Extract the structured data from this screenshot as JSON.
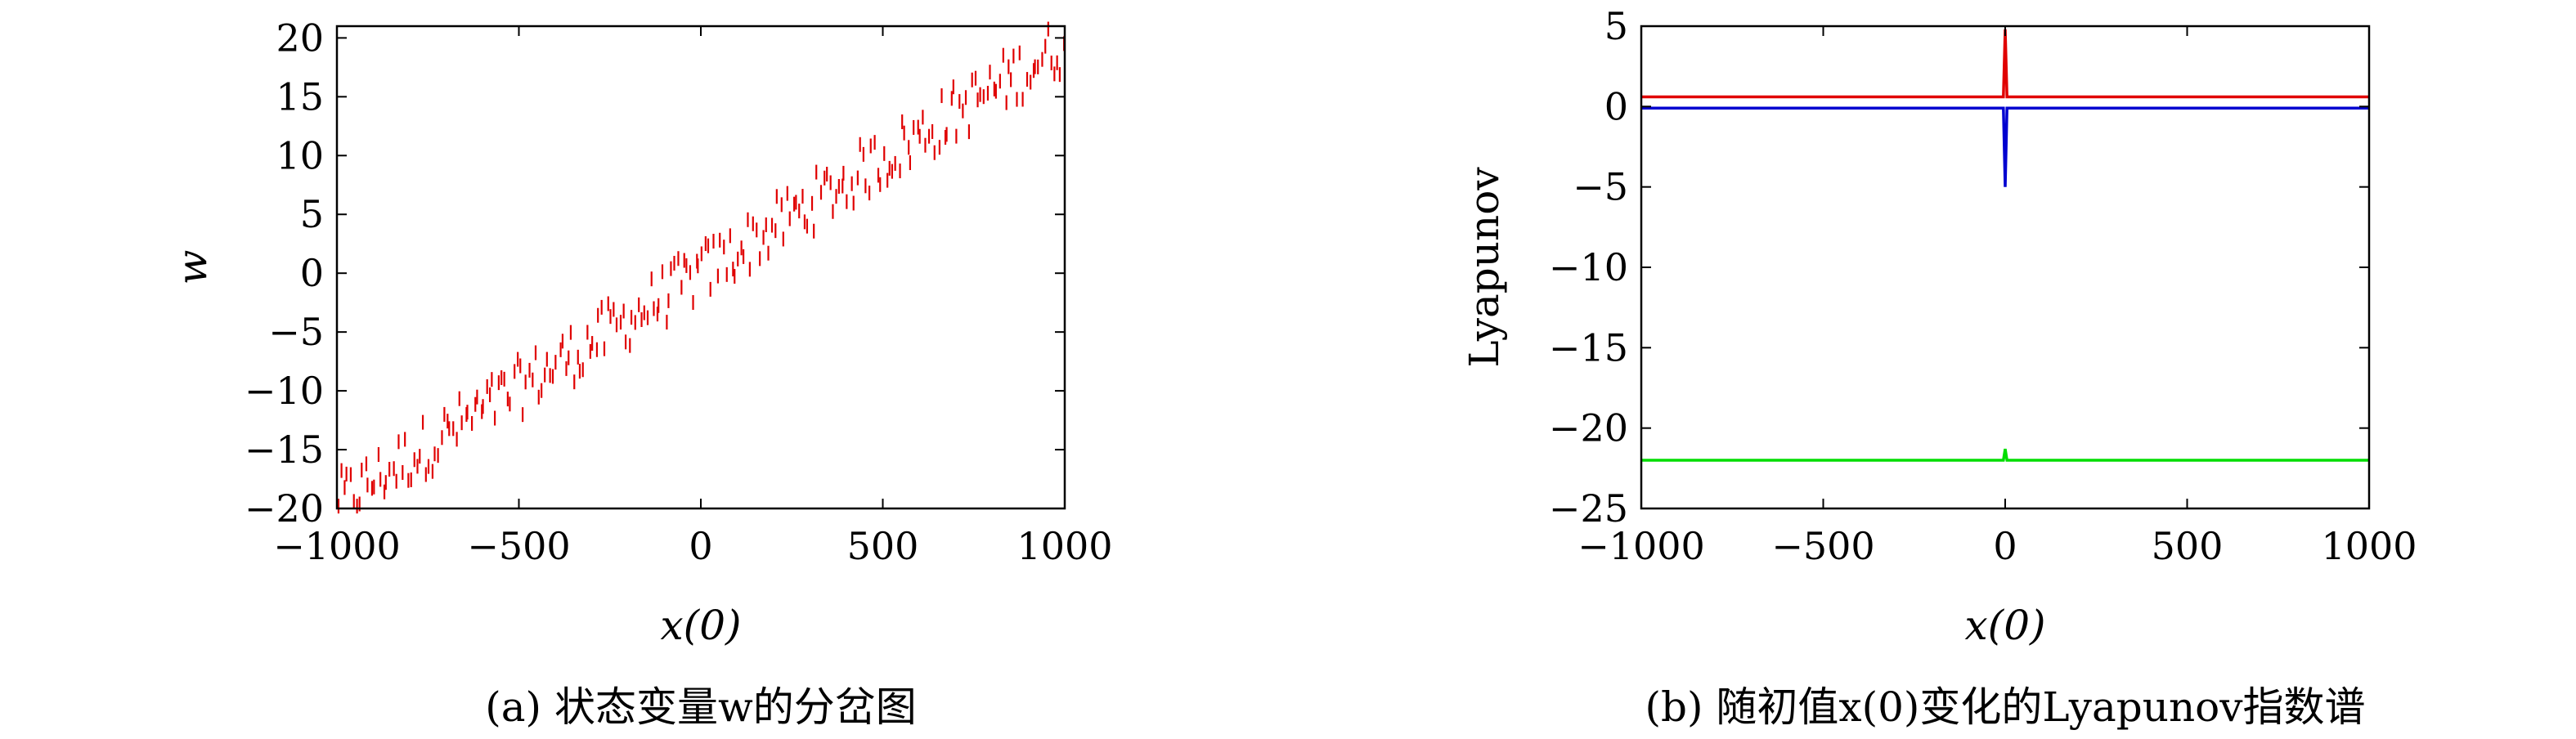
{
  "chart_data": [
    {
      "id": "a",
      "type": "scatter",
      "caption": "(a) 状态变量w的分岔图",
      "xlabel": "x(0)",
      "ylabel": "w",
      "xlim": [
        -1000,
        1000
      ],
      "ylim": [
        -20,
        21
      ],
      "xticks": [
        "−1000",
        "−500",
        "0",
        "500",
        "1000"
      ],
      "xtick_values": [
        -1000,
        -500,
        0,
        500,
        1000
      ],
      "yticks": [
        "−20",
        "−15",
        "−10",
        "−5",
        "0",
        "5",
        "10",
        "15",
        "20"
      ],
      "ytick_values": [
        -20,
        -15,
        -10,
        -5,
        0,
        5,
        10,
        15,
        20
      ],
      "grid": false,
      "marker": "short vertical dash",
      "series": [
        {
          "color": "#e00000",
          "trend": {
            "x": [
              -1000,
              1000
            ],
            "y": [
              -19.5,
              19.5
            ]
          },
          "spread": 2.5,
          "count": 240,
          "points": []
        }
      ]
    },
    {
      "id": "b",
      "type": "line",
      "caption": "(b) 随初值x(0)变化的Lyapunov指数谱",
      "xlabel": "x(0)",
      "ylabel": "Lyapunov",
      "xlim": [
        -1000,
        1000
      ],
      "ylim": [
        -25,
        5
      ],
      "xticks": [
        "−1000",
        "−500",
        "0",
        "500",
        "1000"
      ],
      "xtick_values": [
        -1000,
        -500,
        0,
        500,
        1000
      ],
      "yticks": [
        "5",
        "0",
        "−5",
        "−10",
        "−15",
        "−20",
        "−25"
      ],
      "ytick_values": [
        5,
        0,
        -5,
        -10,
        -15,
        -20,
        -25
      ],
      "grid": false,
      "series": [
        {
          "color": "#e00000",
          "x": [
            -1000,
            -5,
            0,
            5,
            1000
          ],
          "y": [
            0.6,
            0.6,
            4.8,
            0.6,
            0.6
          ]
        },
        {
          "color": "#0000d0",
          "x": [
            -1000,
            -5,
            0,
            5,
            1000
          ],
          "y": [
            -0.1,
            -0.1,
            -5.0,
            -0.1,
            -0.1
          ]
        },
        {
          "color": "#00dd00",
          "x": [
            -1000,
            -5,
            0,
            5,
            1000
          ],
          "y": [
            -22.0,
            -22.0,
            -21.3,
            -22.0,
            -22.0
          ]
        }
      ]
    }
  ]
}
